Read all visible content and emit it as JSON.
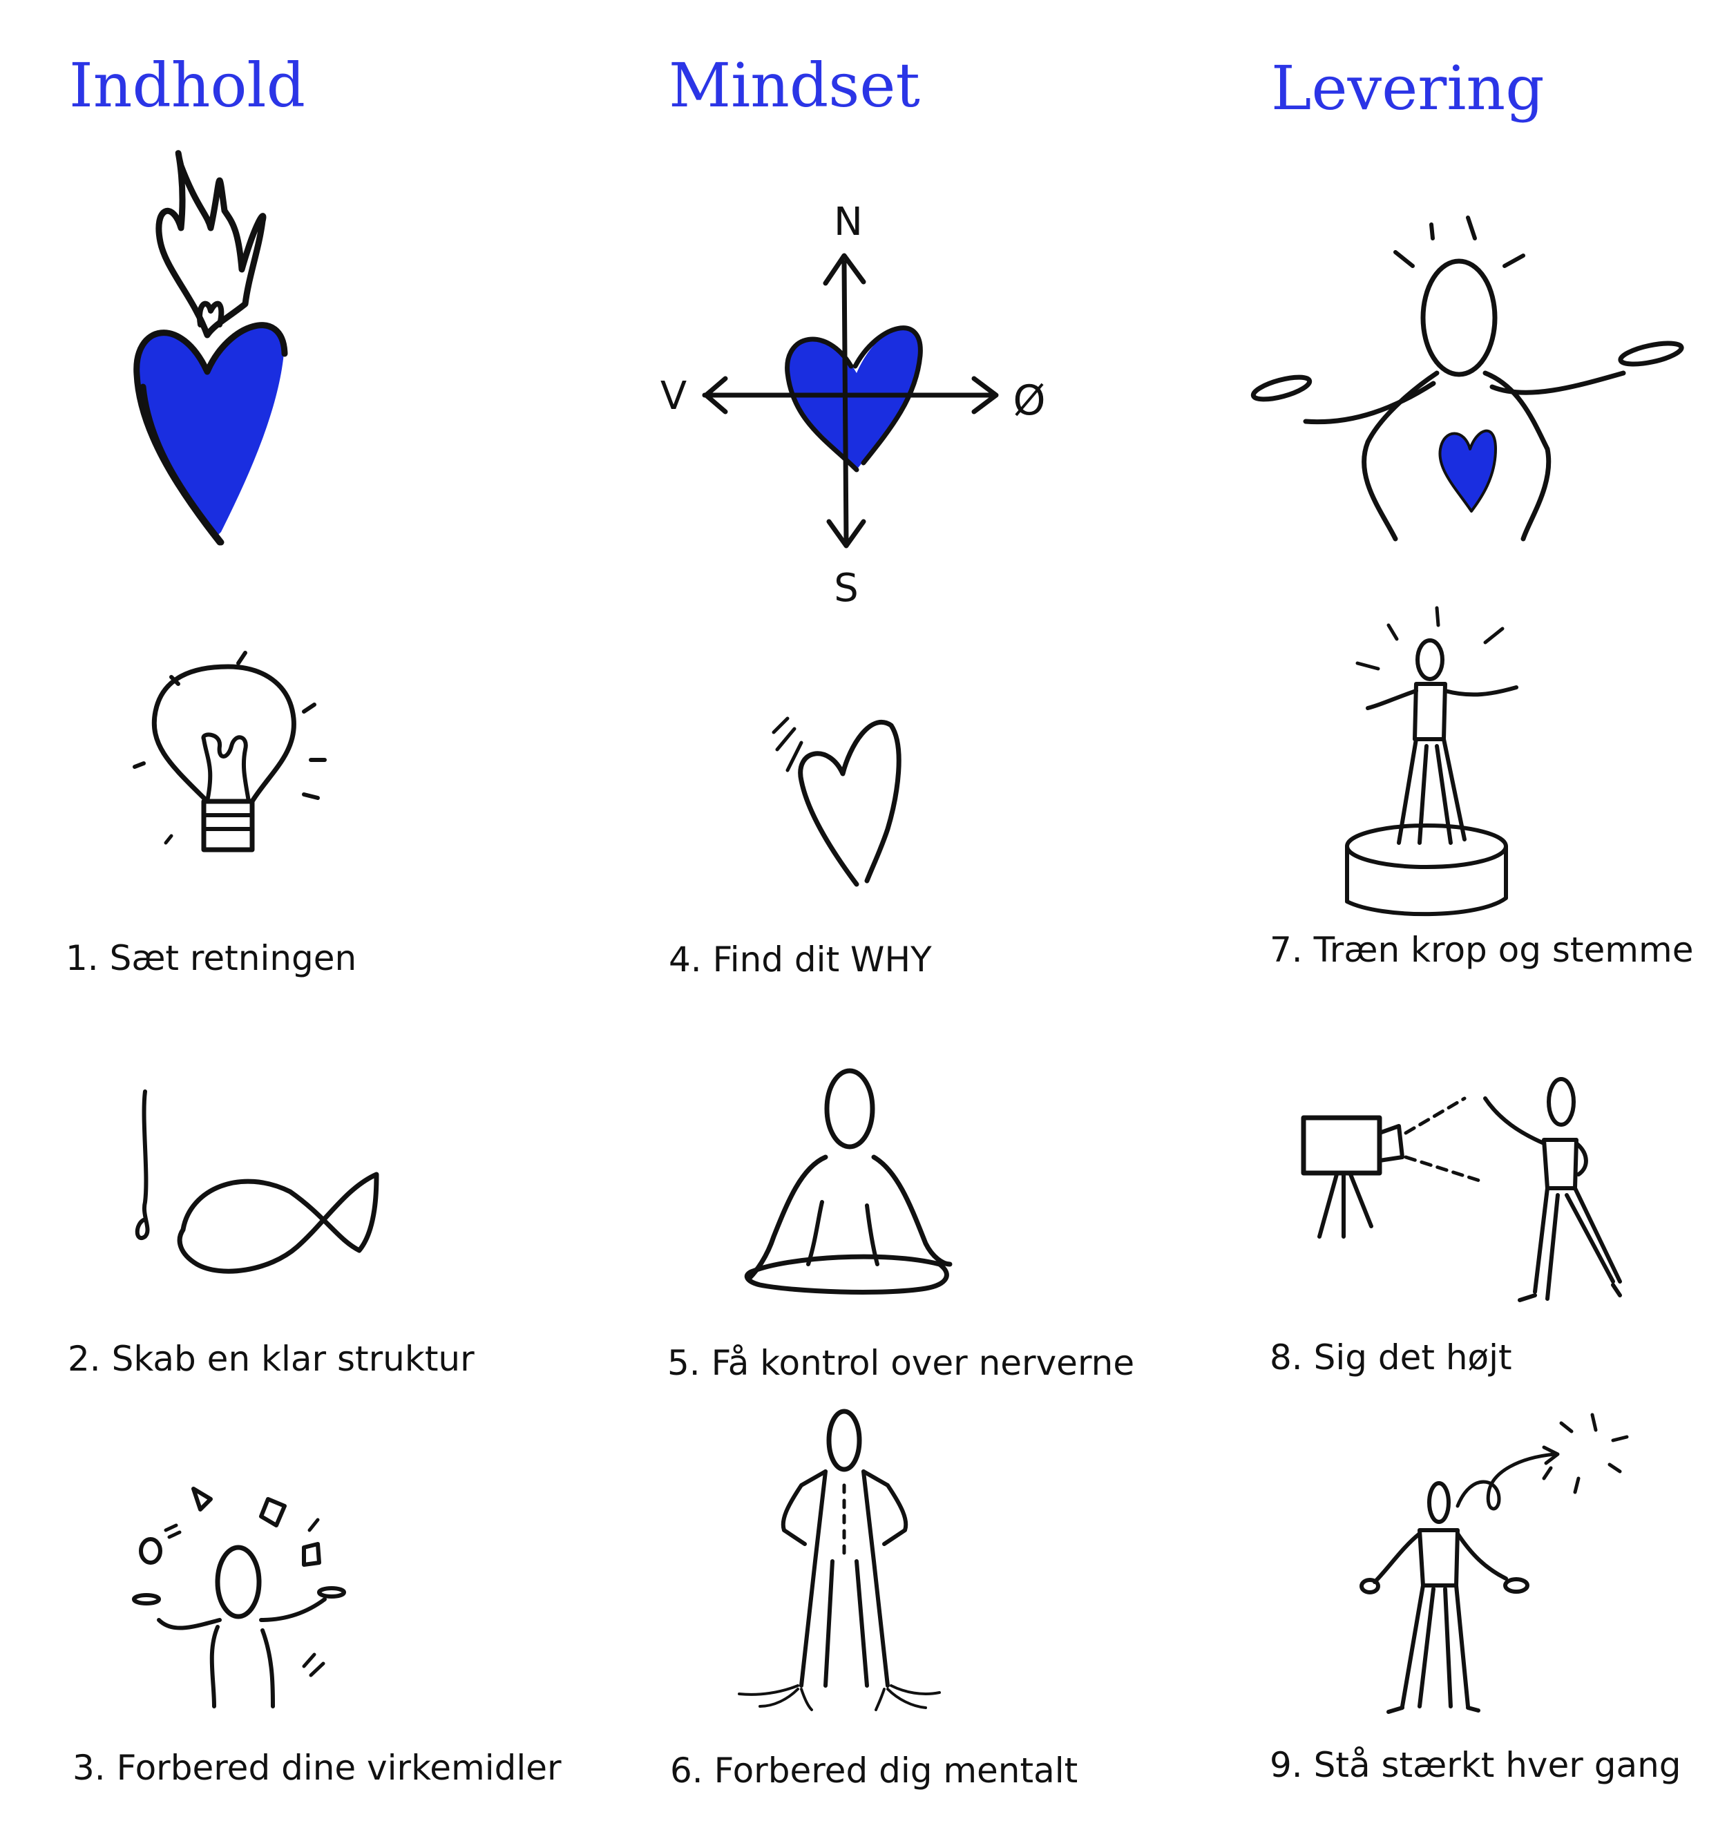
{
  "columns": [
    {
      "heading": "Indhold"
    },
    {
      "heading": "Mindset"
    },
    {
      "heading": "Levering"
    }
  ],
  "steps": [
    {
      "label": "1. Sæt retningen"
    },
    {
      "label": "2. Skab en klar struktur"
    },
    {
      "label": "3. Forbered dine virkemidler"
    },
    {
      "label": "4. Find dit WHY"
    },
    {
      "label": "5. Få kontrol over nerverne"
    },
    {
      "label": "6. Forbered dig mentalt"
    },
    {
      "label": "7. Træn krop og stemme"
    },
    {
      "label": "8. Sig det højt"
    },
    {
      "label": "9. Stå stærkt hver gang"
    }
  ],
  "compass": {
    "north": "N",
    "south": "S",
    "west": "V",
    "east": "Ø"
  },
  "colors": {
    "accent": "#2b35e6",
    "ink": "#111111"
  }
}
